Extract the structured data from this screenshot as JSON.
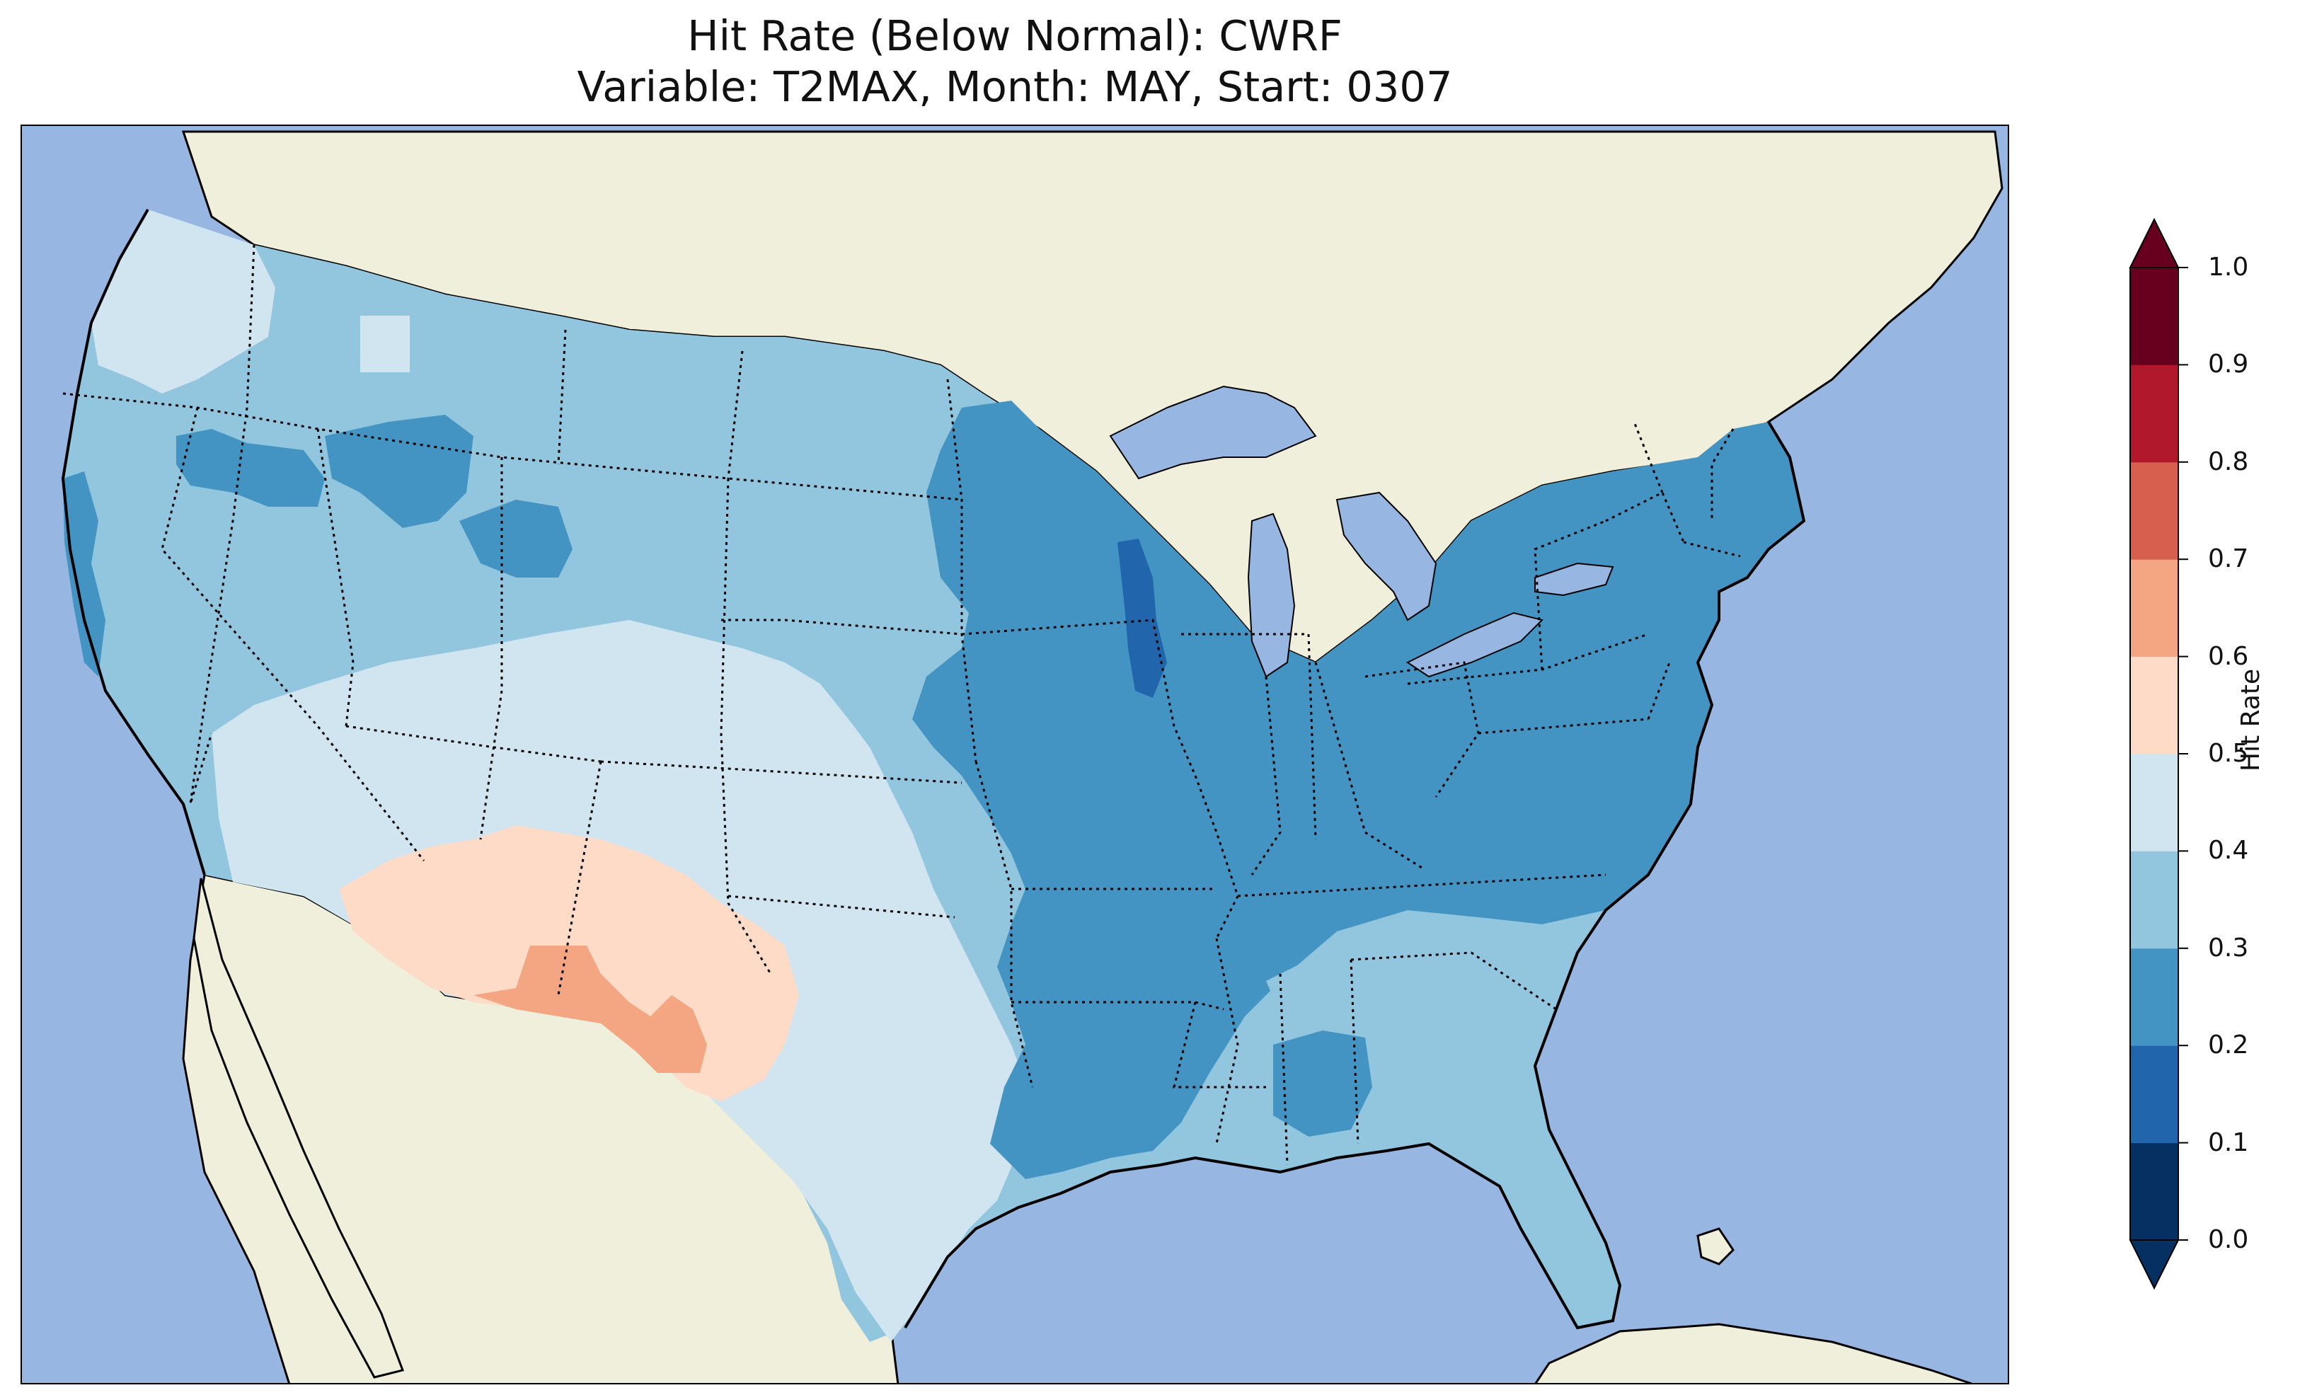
{
  "title": {
    "line1": "Hit Rate (Below Normal): CWRF",
    "line2": "Variable: T2MAX, Month: MAY, Start: 0307"
  },
  "colors": {
    "ocean": "#97b6e1",
    "land": "#efefdb",
    "lakes": "#97b6e1",
    "border": "#000000"
  },
  "colorbar": {
    "label": "Hit Rate",
    "ticks": [
      "0.0",
      "0.1",
      "0.2",
      "0.3",
      "0.4",
      "0.5",
      "0.6",
      "0.7",
      "0.8",
      "0.9",
      "1.0"
    ],
    "bins": [
      {
        "range": [
          0.0,
          0.1
        ],
        "color": "#053061"
      },
      {
        "range": [
          0.1,
          0.2
        ],
        "color": "#2166ac"
      },
      {
        "range": [
          0.2,
          0.3
        ],
        "color": "#4393c3"
      },
      {
        "range": [
          0.3,
          0.4
        ],
        "color": "#92c5de"
      },
      {
        "range": [
          0.4,
          0.5
        ],
        "color": "#d1e5f0"
      },
      {
        "range": [
          0.5,
          0.6
        ],
        "color": "#fddbc7"
      },
      {
        "range": [
          0.6,
          0.7
        ],
        "color": "#f4a582"
      },
      {
        "range": [
          0.7,
          0.8
        ],
        "color": "#d6604d"
      },
      {
        "range": [
          0.8,
          0.9
        ],
        "color": "#b2182b"
      },
      {
        "range": [
          0.9,
          1.0
        ],
        "color": "#67001f"
      }
    ],
    "extend": "both"
  },
  "regions": [
    {
      "name": "Pacific Northwest coast",
      "bin": "0.4-0.5"
    },
    {
      "name": "Western interior",
      "bin": "0.3-0.4"
    },
    {
      "name": "Northern Plains",
      "bin": "0.3-0.4"
    },
    {
      "name": "Southwest / Four Corners",
      "bin": "0.4-0.5"
    },
    {
      "name": "Arizona / New Mexico / West Texas",
      "bin": "0.5-0.6"
    },
    {
      "name": "Trans-Pecos pocket",
      "bin": "0.6-0.7"
    },
    {
      "name": "Upper Midwest / Great Lakes",
      "bin": "0.2-0.3"
    },
    {
      "name": "Western Wisconsin pocket",
      "bin": "0.1-0.2"
    },
    {
      "name": "Northeast",
      "bin": "0.2-0.3"
    },
    {
      "name": "Ohio / Mississippi Valley",
      "bin": "0.2-0.3"
    },
    {
      "name": "Southeast / Gulf Coast / Florida",
      "bin": "0.3-0.4"
    },
    {
      "name": "South Texas",
      "bin": "0.4-0.5"
    }
  ]
}
